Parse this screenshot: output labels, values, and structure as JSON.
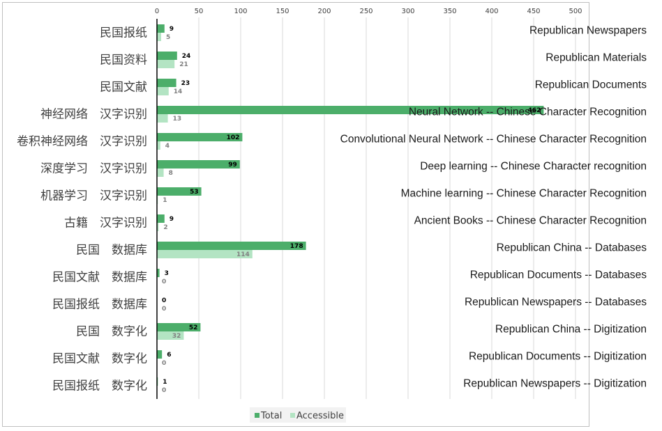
{
  "chart_data": {
    "type": "bar",
    "orientation": "horizontal",
    "xlim": [
      0,
      500
    ],
    "x_ticks": [
      "0",
      "50",
      "100",
      "150",
      "200",
      "250",
      "300",
      "350",
      "400",
      "450",
      "500"
    ],
    "grid": true,
    "legend_position": "bottom",
    "categories": [
      {
        "cn": "民国报纸",
        "en": "Republican Newspapers"
      },
      {
        "cn": "民国资料",
        "en": "Republican Materials"
      },
      {
        "cn": "民国文献",
        "en": "Republican Documents"
      },
      {
        "cn": "神经网络　汉字识别",
        "en": "Neural Network -- Chinese Character Recognition"
      },
      {
        "cn": "卷积神经网络　汉字识别",
        "en": "Convolutional Neural Network -- Chinese Character Recognition"
      },
      {
        "cn": "深度学习　汉字识别",
        "en": "Deep learning -- Chinese Character recognition"
      },
      {
        "cn": "机器学习　汉字识别",
        "en": "Machine learning -- Chinese Character Recognition"
      },
      {
        "cn": "古籍　汉字识别",
        "en": "Ancient Books -- Chinese Character Recognition"
      },
      {
        "cn": "民国　数据库",
        "en": "Republican China -- Databases"
      },
      {
        "cn": "民国文献　数据库",
        "en": "Republican Documents -- Databases"
      },
      {
        "cn": "民国报纸　数据库",
        "en": "Republican Newspapers -- Databases"
      },
      {
        "cn": "民国　数字化",
        "en": "Republican China -- Digitization"
      },
      {
        "cn": "民国文献　数字化",
        "en": "Republican Documents -- Digitization"
      },
      {
        "cn": "民国报纸　数字化",
        "en": "Republican Newspapers -- Digitization"
      }
    ],
    "series": [
      {
        "name": "Total",
        "color": "#4cae6a",
        "values": [
          9,
          24,
          23,
          462,
          102,
          99,
          53,
          9,
          178,
          3,
          0,
          52,
          6,
          1
        ]
      },
      {
        "name": "Accessible",
        "color": "#b3e4c3",
        "values": [
          5,
          21,
          14,
          13,
          4,
          8,
          1,
          2,
          114,
          0,
          0,
          32,
          0,
          0
        ]
      }
    ]
  }
}
